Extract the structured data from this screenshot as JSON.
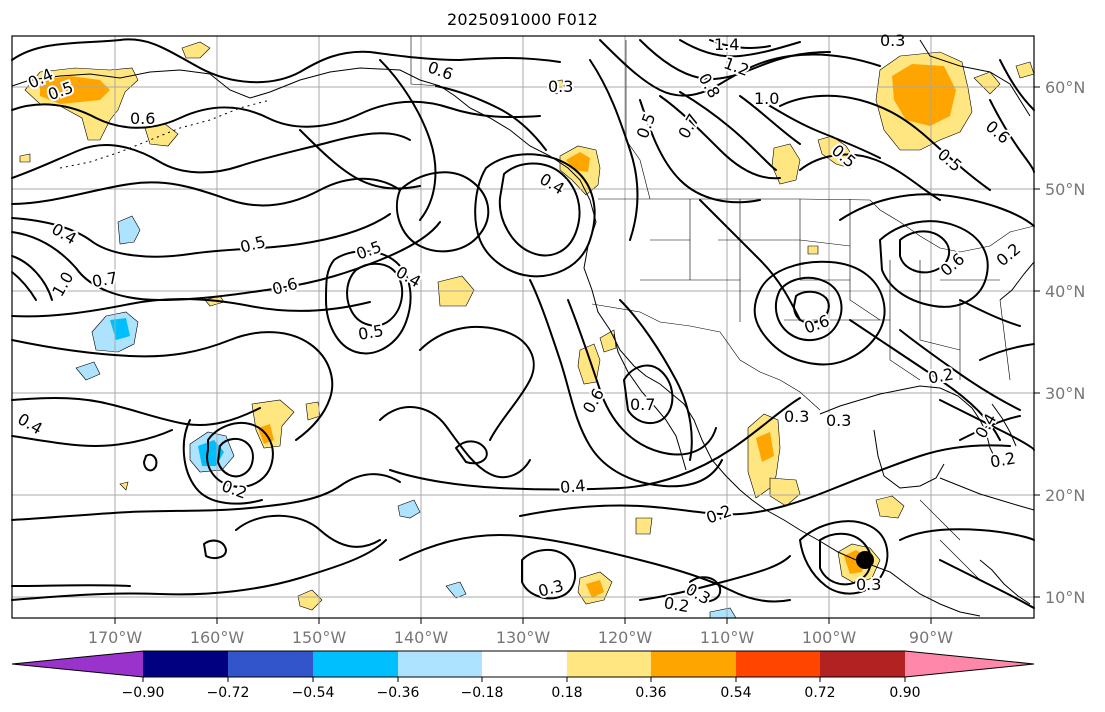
{
  "title": "2025091000 F012",
  "lon_ticks": [
    "170°W",
    "160°W",
    "150°W",
    "140°W",
    "130°W",
    "120°W",
    "110°W",
    "100°W",
    "90°W"
  ],
  "lat_ticks": [
    "60°N",
    "50°N",
    "40°N",
    "30°N",
    "20°N",
    "10°N"
  ],
  "colorbar": {
    "colors": [
      "#9933cc",
      "#000080",
      "#3355cc",
      "#00bfff",
      "#aee3ff",
      "#ffffff",
      "#ffe680",
      "#ffa500",
      "#ff4500",
      "#b22222",
      "#ff88aa"
    ],
    "ticks": [
      "−0.90",
      "−0.72",
      "−0.54",
      "−0.36",
      "−0.18",
      "0.18",
      "0.36",
      "0.54",
      "0.72",
      "0.90"
    ]
  },
  "contour_labels": [
    "0.4",
    "0.5",
    "0.6",
    "0.3",
    "1.4",
    "1.2",
    "1.0",
    "0.8",
    "0.7",
    "0.5",
    "0.4",
    "0.7",
    "1.0",
    "0.5",
    "0.6",
    "0.5",
    "0.4",
    "0.5",
    "0.6",
    "0.7",
    "0.6",
    "0.3",
    "0.3",
    "0.2",
    "0.4",
    "0.2",
    "0.4",
    "0.2",
    "0.3",
    "0.2",
    "0.3",
    "0.3",
    "0.4",
    "0.2",
    "0.6",
    "0.5",
    "0.5",
    "0.3",
    "0.6",
    "0.6",
    "0.2",
    "0.4"
  ]
}
